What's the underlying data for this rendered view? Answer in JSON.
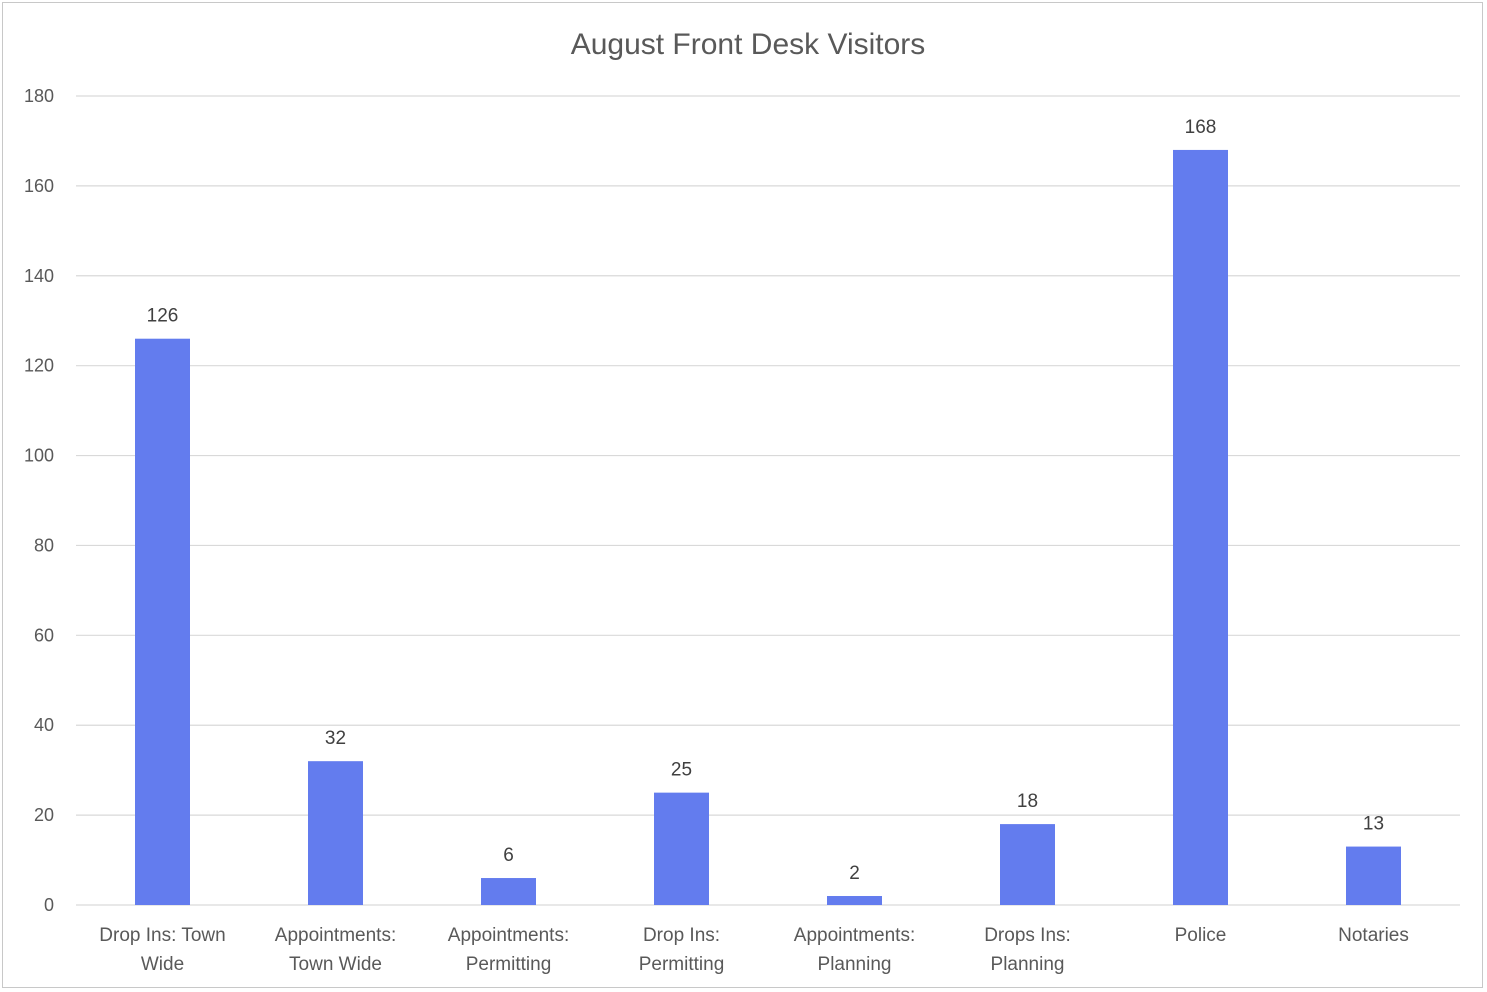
{
  "chart_data": {
    "type": "bar",
    "title": "August Front Desk Visitors",
    "categories": [
      [
        "Drop Ins: Town",
        "Wide"
      ],
      [
        "Appointments:",
        "Town Wide"
      ],
      [
        "Appointments:",
        "Permitting"
      ],
      [
        "Drop Ins:",
        "Permitting"
      ],
      [
        "Appointments:",
        "Planning"
      ],
      [
        "Drops Ins:",
        "Planning"
      ],
      [
        "Police"
      ],
      [
        "Notaries"
      ]
    ],
    "values": [
      126,
      32,
      6,
      25,
      2,
      18,
      168,
      13
    ],
    "data_labels": [
      "126",
      "32",
      "6",
      "25",
      "2",
      "18",
      "168",
      "13"
    ],
    "xlabel": "",
    "ylabel": "",
    "ylim": [
      0,
      180
    ],
    "yticks": [
      "0",
      "20",
      "40",
      "60",
      "80",
      "100",
      "120",
      "140",
      "160",
      "180"
    ],
    "grid": true,
    "legend": "none",
    "colors": {
      "bar": "#637cee",
      "grid": "#d9d9d9",
      "text": "#595959"
    }
  }
}
